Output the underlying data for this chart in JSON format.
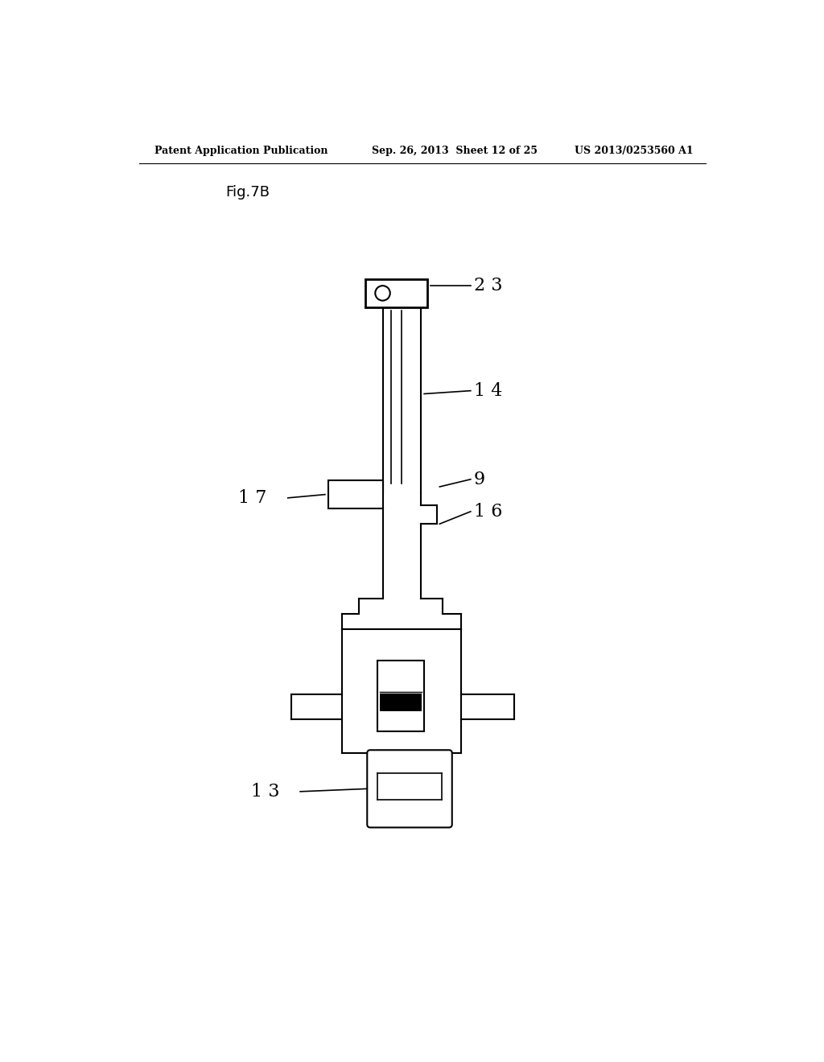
{
  "background_color": "#ffffff",
  "header_left": "Patent Application Publication",
  "header_center": "Sep. 26, 2013  Sheet 12 of 25",
  "header_right": "US 2013/0253560 A1",
  "fig_label": "Fig.7B"
}
